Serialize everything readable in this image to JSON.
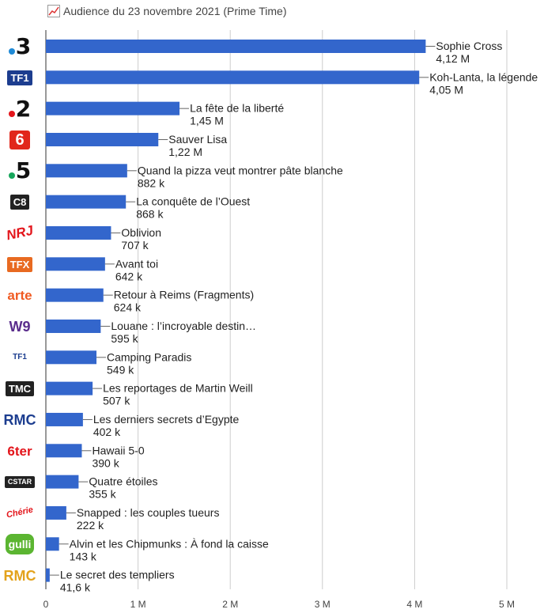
{
  "title": "Audience du 23 novembre 2021 (Prime Time)",
  "icons": {
    "title_icon": "line-chart-icon"
  },
  "colors": {
    "bar": "#3366cc",
    "grid": "#cccccc",
    "text": "#222222",
    "axis_text": "#444444"
  },
  "channels": [
    {
      "name": "France 3",
      "logo": {
        "text": "3",
        "color": "#111111",
        "dot": "#1f8ad6",
        "style": "digit"
      }
    },
    {
      "name": "TF1",
      "logo": {
        "text": "TF1",
        "color": "#ffffff",
        "bg": "#1c3d8f",
        "style": "box"
      }
    },
    {
      "name": "France 2",
      "logo": {
        "text": "2",
        "color": "#111111",
        "dot": "#e3151b",
        "style": "digit"
      }
    },
    {
      "name": "M6",
      "logo": {
        "text": "6",
        "color": "#ffffff",
        "bg": "#e1271b",
        "style": "m6"
      }
    },
    {
      "name": "France 5",
      "logo": {
        "text": "5",
        "color": "#111111",
        "dot": "#17a65b",
        "style": "digit"
      }
    },
    {
      "name": "C8",
      "logo": {
        "text": "C8",
        "color": "#ffffff",
        "bg": "#222222",
        "style": "box"
      }
    },
    {
      "name": "NRJ 12",
      "logo": {
        "text": "NRJ",
        "color": "#e3151b",
        "style": "script"
      }
    },
    {
      "name": "TFX",
      "logo": {
        "text": "TFX",
        "color": "#ffffff",
        "bg": "#e86a21",
        "style": "box"
      }
    },
    {
      "name": "Arte",
      "logo": {
        "text": "arte",
        "color": "#f05a22",
        "style": "word"
      }
    },
    {
      "name": "W9",
      "logo": {
        "text": "W9",
        "color": "#5a2d8c",
        "style": "word"
      }
    },
    {
      "name": "TF1 Séries Films",
      "logo": {
        "text": "TF1",
        "color": "#1c3d8f",
        "style": "small"
      }
    },
    {
      "name": "TMC",
      "logo": {
        "text": "TMC",
        "color": "#ffffff",
        "bg": "#222222",
        "style": "box"
      }
    },
    {
      "name": "RMC Découverte",
      "logo": {
        "text": "RMC",
        "color": "#1c3d8f",
        "style": "word"
      }
    },
    {
      "name": "6ter",
      "logo": {
        "text": "6ter",
        "color": "#e3151b",
        "style": "word"
      }
    },
    {
      "name": "CSTAR",
      "logo": {
        "text": "CSTAR",
        "color": "#ffffff",
        "bg": "#222222",
        "style": "box"
      }
    },
    {
      "name": "Chérie 25",
      "logo": {
        "text": "Chérie",
        "color": "#e3151b",
        "style": "script"
      }
    },
    {
      "name": "Gulli",
      "logo": {
        "text": "gulli",
        "color": "#ffffff",
        "bg": "#5bb531",
        "style": "round"
      }
    },
    {
      "name": "RMC Story",
      "logo": {
        "text": "RMC",
        "color": "#e3a21b",
        "style": "word"
      }
    }
  ],
  "chart_data": {
    "type": "bar",
    "orientation": "horizontal",
    "title": "Audience du 23 novembre 2021 (Prime Time)",
    "xlim": [
      0,
      5500000
    ],
    "x_ticks": [
      0,
      1000000,
      2000000,
      3000000,
      4000000,
      5000000
    ],
    "x_tick_labels": [
      "0",
      "1 M",
      "2 M",
      "3 M",
      "4 M",
      "5 M"
    ],
    "grid": true,
    "categories": [
      "Sophie Cross",
      "Koh-Lanta, la légende",
      "La fête de la liberté",
      "Sauver Lisa",
      "Quand la pizza veut montrer pâte blanche",
      "La conquête de l’Ouest",
      "Oblivion",
      "Avant toi",
      "Retour à Reims (Fragments)",
      "Louane : l’incroyable destin…",
      "Camping Paradis",
      "Les reportages de Martin Weill",
      "Les derniers secrets d’Egypte",
      "Hawaii 5-0",
      "Quatre étoiles",
      "Snapped : les couples tueurs",
      "Alvin et les Chipmunks : À fond la caisse",
      "Le secret des templiers"
    ],
    "values": [
      4120000,
      4050000,
      1450000,
      1220000,
      882000,
      868000,
      707000,
      642000,
      624000,
      595000,
      549000,
      507000,
      402000,
      390000,
      355000,
      222000,
      143000,
      41600
    ],
    "value_labels": [
      "4,12 M",
      "4,05 M",
      "1,45 M",
      "1,22 M",
      "882 k",
      "868 k",
      "707 k",
      "642 k",
      "624 k",
      "595 k",
      "549 k",
      "507 k",
      "402 k",
      "390 k",
      "355 k",
      "222 k",
      "143 k",
      "41,6 k"
    ]
  }
}
